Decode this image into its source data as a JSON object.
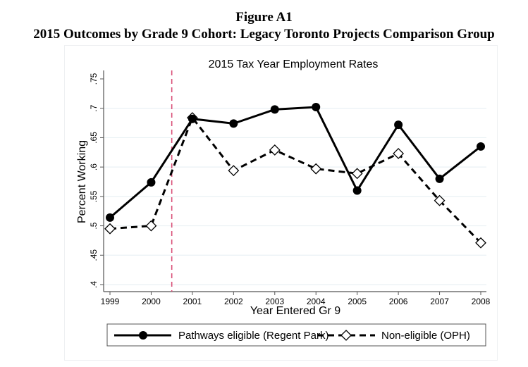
{
  "figure": {
    "label": "Figure A1",
    "subtitle": "2015 Outcomes by Grade 9 Cohort: Legacy Toronto Projects Comparison Group"
  },
  "colors": {
    "series_line": "#000000",
    "gridline": "#eaf1f4",
    "axis": "#555555",
    "reference_line": "#d94f77",
    "legend_border": "#555555"
  },
  "chart_data": {
    "type": "line",
    "title": "2015 Tax Year Employment Rates",
    "xlabel": "Year Entered Gr 9",
    "ylabel": "Percent Working",
    "x": [
      1999,
      2000,
      2001,
      2002,
      2003,
      2004,
      2005,
      2006,
      2007,
      2008
    ],
    "xticks": [
      "1999",
      "2000",
      "2001",
      "2002",
      "2003",
      "2004",
      "2005",
      "2006",
      "2007",
      "2008"
    ],
    "ylim": [
      0.4,
      0.75
    ],
    "yticks": [
      0.4,
      0.45,
      0.5,
      0.55,
      0.6,
      0.65,
      0.7,
      0.75
    ],
    "ytick_labels": [
      ".4",
      ".45",
      ".5",
      ".55",
      ".6",
      ".65",
      ".7",
      ".75"
    ],
    "grid": true,
    "reference_line": {
      "x": 2000.5,
      "style": "dashed"
    },
    "series": [
      {
        "name": "Pathways eligible (Regent Park)",
        "marker": "filled-circle",
        "line_style": "solid",
        "values": [
          0.514,
          0.574,
          0.682,
          0.674,
          0.698,
          0.702,
          0.56,
          0.672,
          0.58,
          0.635
        ]
      },
      {
        "name": "Non-eligible (OPH)",
        "marker": "hollow-diamond",
        "line_style": "dashed",
        "values": [
          0.495,
          0.5,
          0.684,
          0.594,
          0.629,
          0.597,
          0.589,
          0.623,
          0.543,
          0.471
        ]
      }
    ],
    "legend": {
      "position": "bottom",
      "entries": [
        "Pathways eligible (Regent Park)",
        "Non-eligible (OPH)"
      ]
    }
  }
}
